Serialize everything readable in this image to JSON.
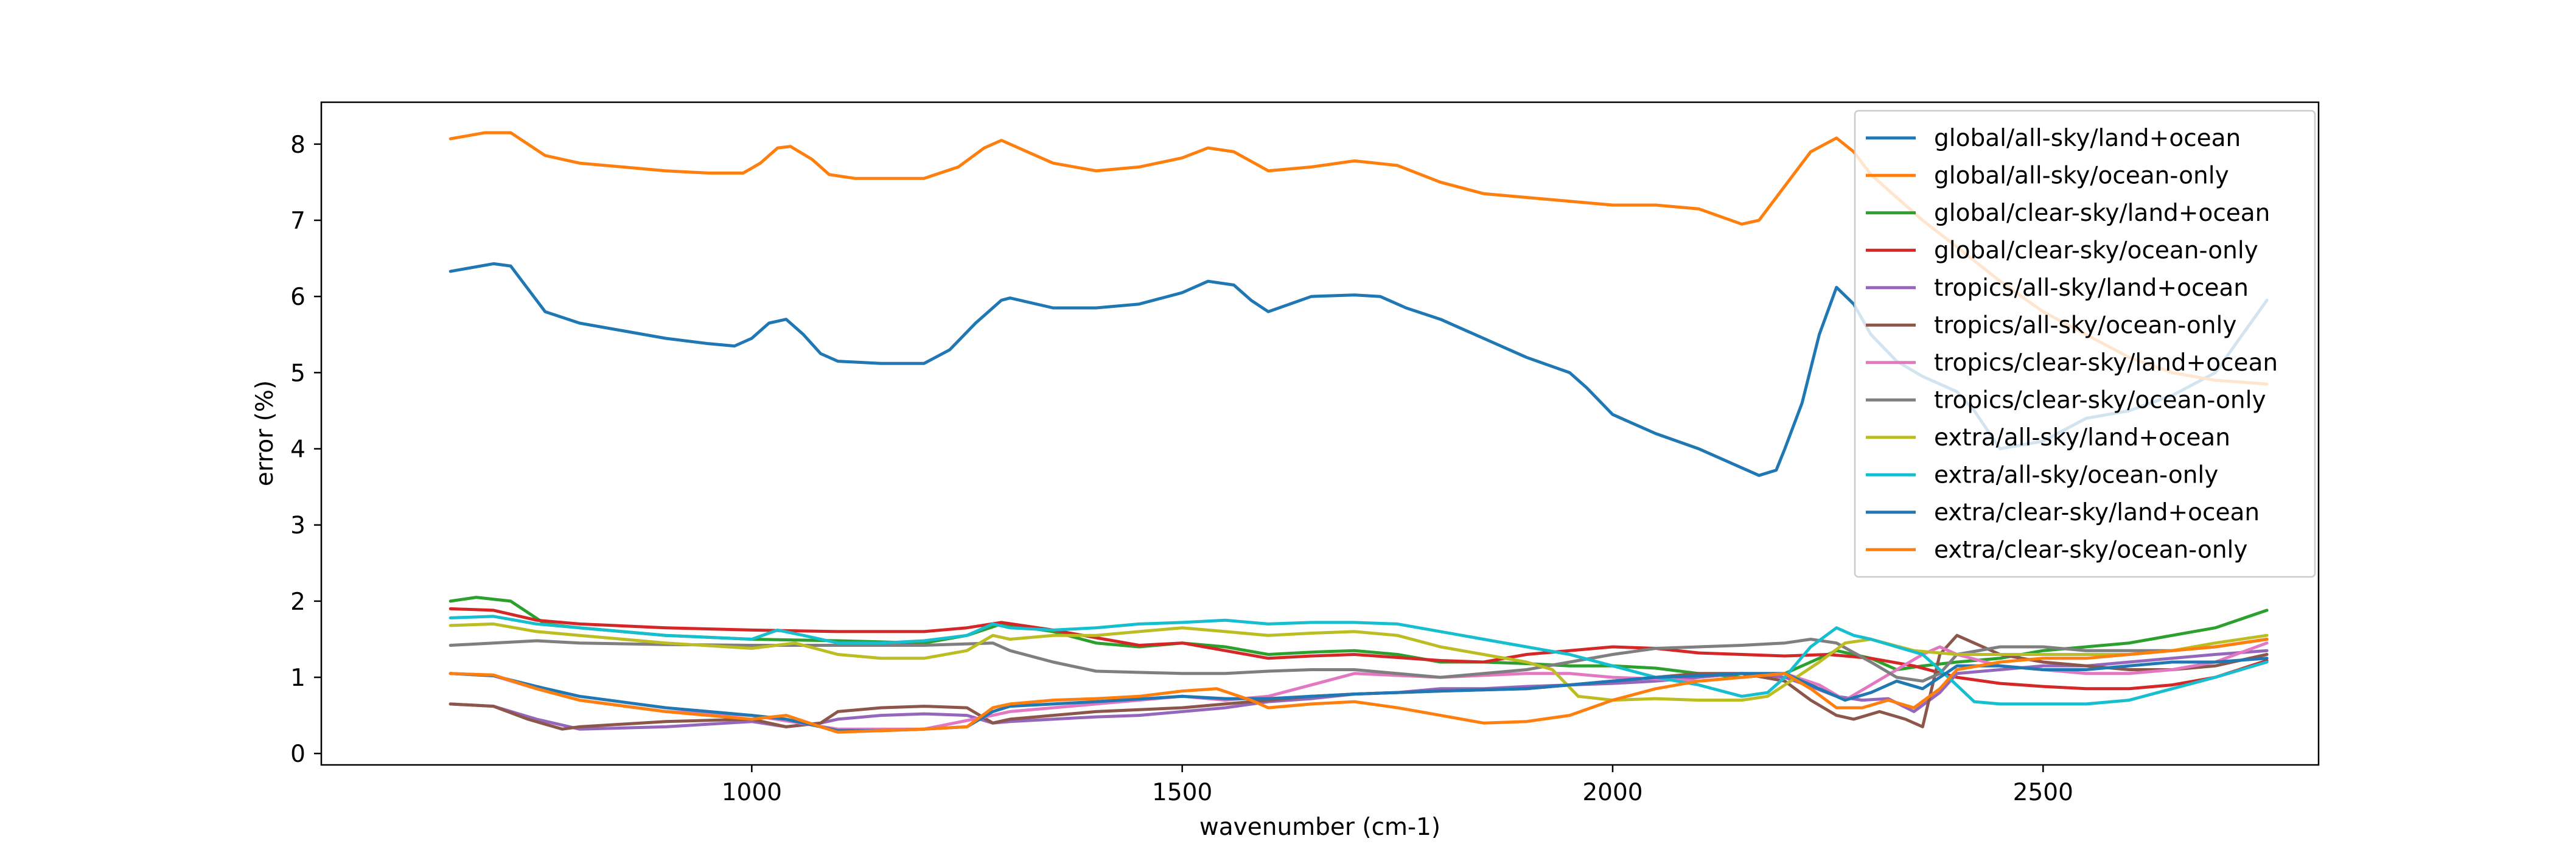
{
  "chart_data": {
    "type": "line",
    "title": "",
    "xlabel": "wavenumber (cm-1)",
    "ylabel": "error (%)",
    "xlim": [
      500,
      2820
    ],
    "ylim": [
      -0.15,
      8.55
    ],
    "xticks": [
      1000,
      1500,
      2000,
      2500
    ],
    "yticks": [
      0,
      1,
      2,
      3,
      4,
      5,
      6,
      7,
      8
    ],
    "grid": false,
    "legend_position": "top-right",
    "series": [
      {
        "name": "global/all-sky/land+ocean",
        "color": "#1f77b4",
        "x": [
          650,
          700,
          720,
          760,
          800,
          850,
          900,
          950,
          980,
          1000,
          1020,
          1040,
          1060,
          1080,
          1100,
          1150,
          1200,
          1230,
          1260,
          1290,
          1300,
          1350,
          1400,
          1450,
          1500,
          1530,
          1560,
          1580,
          1600,
          1650,
          1700,
          1730,
          1760,
          1800,
          1850,
          1900,
          1950,
          1970,
          2000,
          2050,
          2100,
          2150,
          2170,
          2190,
          2200,
          2220,
          2240,
          2260,
          2280,
          2300,
          2330,
          2360,
          2380,
          2400,
          2420,
          2450,
          2500,
          2550,
          2600,
          2650,
          2700,
          2760
        ],
        "y": [
          6.33,
          6.43,
          6.4,
          5.8,
          5.65,
          5.55,
          5.45,
          5.38,
          5.35,
          5.45,
          5.65,
          5.7,
          5.5,
          5.25,
          5.15,
          5.12,
          5.12,
          5.3,
          5.65,
          5.95,
          5.98,
          5.85,
          5.85,
          5.9,
          6.05,
          6.2,
          6.15,
          5.95,
          5.8,
          6.0,
          6.02,
          6.0,
          5.85,
          5.7,
          5.45,
          5.2,
          5.0,
          4.8,
          4.45,
          4.2,
          4.0,
          3.75,
          3.65,
          3.72,
          4.0,
          4.6,
          5.5,
          6.12,
          5.9,
          5.5,
          5.15,
          4.95,
          4.85,
          4.75,
          4.5,
          4.0,
          4.1,
          4.4,
          4.5,
          4.7,
          5.0,
          5.95
        ]
      },
      {
        "name": "global/all-sky/ocean-only",
        "color": "#ff7f0e",
        "x": [
          650,
          690,
          720,
          760,
          800,
          850,
          900,
          950,
          990,
          1010,
          1030,
          1045,
          1070,
          1090,
          1120,
          1200,
          1240,
          1270,
          1290,
          1320,
          1350,
          1400,
          1450,
          1500,
          1530,
          1560,
          1600,
          1650,
          1700,
          1750,
          1800,
          1850,
          1900,
          1950,
          2000,
          2050,
          2100,
          2150,
          2170,
          2200,
          2230,
          2260,
          2280,
          2300,
          2330,
          2360,
          2400,
          2450,
          2500,
          2550,
          2600,
          2650,
          2700,
          2760
        ],
        "y": [
          8.07,
          8.15,
          8.15,
          7.85,
          7.75,
          7.7,
          7.65,
          7.62,
          7.62,
          7.75,
          7.95,
          7.97,
          7.8,
          7.6,
          7.55,
          7.55,
          7.7,
          7.95,
          8.05,
          7.9,
          7.75,
          7.65,
          7.7,
          7.82,
          7.95,
          7.9,
          7.65,
          7.7,
          7.78,
          7.72,
          7.5,
          7.35,
          7.3,
          7.25,
          7.2,
          7.2,
          7.15,
          6.95,
          7.0,
          7.45,
          7.9,
          8.08,
          7.9,
          7.6,
          7.3,
          7.0,
          6.65,
          6.2,
          5.8,
          5.5,
          5.2,
          5.0,
          4.9,
          4.85
        ]
      },
      {
        "name": "global/clear-sky/land+ocean",
        "color": "#2ca02c",
        "x": [
          650,
          680,
          720,
          760,
          800,
          900,
          1000,
          1100,
          1200,
          1250,
          1290,
          1350,
          1400,
          1450,
          1500,
          1550,
          1600,
          1650,
          1700,
          1750,
          1800,
          1850,
          1900,
          1950,
          2000,
          2050,
          2100,
          2150,
          2200,
          2230,
          2260,
          2300,
          2330,
          2360,
          2400,
          2450,
          2500,
          2550,
          2600,
          2650,
          2700,
          2760
        ],
        "y": [
          2.0,
          2.05,
          2.0,
          1.7,
          1.65,
          1.55,
          1.5,
          1.48,
          1.45,
          1.55,
          1.7,
          1.6,
          1.45,
          1.4,
          1.45,
          1.4,
          1.3,
          1.33,
          1.35,
          1.3,
          1.2,
          1.2,
          1.18,
          1.15,
          1.15,
          1.12,
          1.05,
          1.0,
          1.05,
          1.2,
          1.35,
          1.25,
          1.1,
          1.15,
          1.2,
          1.25,
          1.35,
          1.4,
          1.45,
          1.55,
          1.65,
          1.88
        ]
      },
      {
        "name": "global/clear-sky/ocean-only",
        "color": "#d62728",
        "x": [
          650,
          700,
          750,
          800,
          900,
          1000,
          1100,
          1200,
          1250,
          1290,
          1350,
          1400,
          1450,
          1500,
          1550,
          1600,
          1650,
          1700,
          1800,
          1850,
          1900,
          1950,
          2000,
          2050,
          2100,
          2150,
          2200,
          2250,
          2300,
          2350,
          2400,
          2450,
          2500,
          2550,
          2600,
          2650,
          2700,
          2760
        ],
        "y": [
          1.9,
          1.88,
          1.75,
          1.7,
          1.65,
          1.62,
          1.6,
          1.6,
          1.65,
          1.72,
          1.62,
          1.52,
          1.42,
          1.45,
          1.35,
          1.25,
          1.28,
          1.3,
          1.22,
          1.2,
          1.3,
          1.35,
          1.4,
          1.38,
          1.32,
          1.3,
          1.28,
          1.3,
          1.25,
          1.15,
          1.0,
          0.92,
          0.88,
          0.85,
          0.85,
          0.9,
          1.0,
          1.22
        ]
      },
      {
        "name": "tropics/all-sky/land+ocean",
        "color": "#9467bd",
        "x": [
          650,
          700,
          750,
          800,
          900,
          1000,
          1040,
          1080,
          1100,
          1150,
          1200,
          1250,
          1280,
          1300,
          1350,
          1400,
          1450,
          1500,
          1550,
          1600,
          1650,
          1700,
          1750,
          1800,
          1850,
          1900,
          1950,
          2000,
          2050,
          2100,
          2150,
          2200,
          2230,
          2260,
          2290,
          2320,
          2350,
          2380,
          2400,
          2450,
          2500,
          2550,
          2600,
          2650,
          2700,
          2760
        ],
        "y": [
          0.65,
          0.62,
          0.45,
          0.32,
          0.35,
          0.42,
          0.35,
          0.4,
          0.45,
          0.5,
          0.52,
          0.5,
          0.4,
          0.42,
          0.45,
          0.48,
          0.5,
          0.55,
          0.6,
          0.68,
          0.72,
          0.78,
          0.8,
          0.85,
          0.85,
          0.88,
          0.9,
          0.92,
          0.95,
          1.0,
          1.05,
          1.0,
          0.88,
          0.75,
          0.7,
          0.72,
          0.55,
          0.8,
          1.05,
          1.1,
          1.15,
          1.15,
          1.2,
          1.25,
          1.3,
          1.35
        ]
      },
      {
        "name": "tropics/all-sky/ocean-only",
        "color": "#8c564b",
        "x": [
          650,
          700,
          740,
          780,
          800,
          900,
          1000,
          1040,
          1080,
          1100,
          1150,
          1200,
          1250,
          1280,
          1300,
          1350,
          1400,
          1500,
          1550,
          1600,
          1650,
          1700,
          1800,
          1900,
          1950,
          2000,
          2050,
          2100,
          2150,
          2200,
          2230,
          2260,
          2280,
          2310,
          2340,
          2360,
          2380,
          2400,
          2450,
          2500,
          2550,
          2600,
          2650,
          2700,
          2760
        ],
        "y": [
          0.65,
          0.62,
          0.45,
          0.32,
          0.35,
          0.42,
          0.45,
          0.35,
          0.4,
          0.55,
          0.6,
          0.62,
          0.6,
          0.4,
          0.45,
          0.5,
          0.55,
          0.6,
          0.65,
          0.7,
          0.75,
          0.78,
          0.82,
          0.85,
          0.9,
          0.95,
          1.0,
          1.05,
          1.05,
          0.95,
          0.7,
          0.5,
          0.45,
          0.55,
          0.45,
          0.35,
          1.3,
          1.55,
          1.3,
          1.2,
          1.15,
          1.1,
          1.1,
          1.15,
          1.3
        ]
      },
      {
        "name": "tropics/clear-sky/land+ocean",
        "color": "#e377c2",
        "x": [
          650,
          700,
          750,
          800,
          900,
          1000,
          1100,
          1200,
          1280,
          1300,
          1350,
          1400,
          1500,
          1550,
          1600,
          1650,
          1700,
          1800,
          1900,
          1950,
          2000,
          2050,
          2100,
          2150,
          2200,
          2240,
          2270,
          2300,
          2330,
          2360,
          2380,
          2400,
          2450,
          2500,
          2550,
          2600,
          2650,
          2700,
          2760
        ],
        "y": [
          1.05,
          1.02,
          0.85,
          0.7,
          0.55,
          0.5,
          0.32,
          0.32,
          0.5,
          0.55,
          0.6,
          0.65,
          0.75,
          0.7,
          0.75,
          0.9,
          1.05,
          1.0,
          1.05,
          1.05,
          1.0,
          0.98,
          0.95,
          1.0,
          1.05,
          0.9,
          0.7,
          0.9,
          1.1,
          1.3,
          1.4,
          1.3,
          1.15,
          1.1,
          1.05,
          1.05,
          1.1,
          1.2,
          1.45
        ]
      },
      {
        "name": "tropics/clear-sky/ocean-only",
        "color": "#7f7f7f",
        "x": [
          650,
          700,
          750,
          800,
          900,
          1000,
          1100,
          1200,
          1280,
          1300,
          1350,
          1400,
          1500,
          1550,
          1600,
          1650,
          1700,
          1800,
          1900,
          1950,
          2000,
          2050,
          2100,
          2150,
          2200,
          2230,
          2260,
          2300,
          2330,
          2360,
          2380,
          2400,
          2450,
          2500,
          2550,
          2600,
          2650,
          2700,
          2760
        ],
        "y": [
          1.42,
          1.45,
          1.48,
          1.45,
          1.43,
          1.42,
          1.42,
          1.42,
          1.45,
          1.35,
          1.2,
          1.08,
          1.05,
          1.05,
          1.08,
          1.1,
          1.1,
          1.0,
          1.1,
          1.2,
          1.3,
          1.38,
          1.4,
          1.42,
          1.45,
          1.5,
          1.45,
          1.2,
          1.0,
          0.95,
          1.05,
          1.3,
          1.4,
          1.4,
          1.35,
          1.35,
          1.35,
          1.4,
          1.5
        ]
      },
      {
        "name": "extra/all-sky/land+ocean",
        "color": "#bcbd22",
        "x": [
          650,
          700,
          750,
          800,
          900,
          1000,
          1050,
          1100,
          1150,
          1200,
          1250,
          1280,
          1300,
          1350,
          1400,
          1450,
          1500,
          1550,
          1600,
          1650,
          1700,
          1750,
          1800,
          1850,
          1900,
          1930,
          1960,
          2000,
          2050,
          2100,
          2150,
          2180,
          2200,
          2240,
          2270,
          2300,
          2350,
          2400,
          2450,
          2500,
          2550,
          2600,
          2650,
          2700,
          2760
        ],
        "y": [
          1.68,
          1.7,
          1.6,
          1.55,
          1.45,
          1.38,
          1.45,
          1.3,
          1.25,
          1.25,
          1.35,
          1.55,
          1.5,
          1.55,
          1.55,
          1.6,
          1.65,
          1.6,
          1.55,
          1.58,
          1.6,
          1.55,
          1.4,
          1.3,
          1.2,
          1.1,
          0.75,
          0.7,
          0.72,
          0.7,
          0.7,
          0.75,
          0.9,
          1.2,
          1.45,
          1.5,
          1.35,
          1.3,
          1.3,
          1.3,
          1.3,
          1.3,
          1.35,
          1.45,
          1.55
        ]
      },
      {
        "name": "extra/all-sky/ocean-only",
        "color": "#17becf",
        "x": [
          650,
          700,
          750,
          800,
          900,
          1000,
          1030,
          1060,
          1100,
          1150,
          1200,
          1250,
          1280,
          1300,
          1350,
          1400,
          1450,
          1500,
          1550,
          1600,
          1650,
          1700,
          1750,
          1800,
          1850,
          1900,
          1950,
          2000,
          2050,
          2100,
          2150,
          2180,
          2200,
          2230,
          2260,
          2280,
          2300,
          2330,
          2360,
          2390,
          2420,
          2450,
          2500,
          2550,
          2600,
          2650,
          2700,
          2760
        ],
        "y": [
          1.78,
          1.8,
          1.7,
          1.65,
          1.55,
          1.5,
          1.62,
          1.55,
          1.45,
          1.45,
          1.48,
          1.55,
          1.7,
          1.65,
          1.62,
          1.65,
          1.7,
          1.72,
          1.75,
          1.7,
          1.72,
          1.72,
          1.7,
          1.6,
          1.5,
          1.4,
          1.3,
          1.15,
          1.0,
          0.9,
          0.75,
          0.8,
          1.0,
          1.4,
          1.65,
          1.55,
          1.5,
          1.4,
          1.3,
          1.0,
          0.68,
          0.65,
          0.65,
          0.65,
          0.7,
          0.85,
          1.0,
          1.2
        ]
      },
      {
        "name": "extra/clear-sky/land+ocean",
        "color": "#1f77b4",
        "x": [
          650,
          700,
          750,
          800,
          900,
          1000,
          1040,
          1080,
          1100,
          1150,
          1200,
          1250,
          1280,
          1300,
          1350,
          1400,
          1500,
          1550,
          1600,
          1650,
          1700,
          1800,
          1900,
          1950,
          2000,
          2050,
          2100,
          2150,
          2200,
          2240,
          2270,
          2300,
          2330,
          2360,
          2380,
          2400,
          2450,
          2500,
          2550,
          2600,
          2650,
          2700,
          2760
        ],
        "y": [
          1.05,
          1.02,
          0.88,
          0.75,
          0.6,
          0.5,
          0.45,
          0.35,
          0.3,
          0.3,
          0.32,
          0.35,
          0.55,
          0.62,
          0.65,
          0.68,
          0.75,
          0.72,
          0.72,
          0.75,
          0.78,
          0.82,
          0.85,
          0.9,
          0.95,
          1.0,
          1.02,
          1.05,
          1.05,
          0.85,
          0.7,
          0.8,
          0.95,
          0.85,
          1.0,
          1.15,
          1.15,
          1.1,
          1.1,
          1.15,
          1.2,
          1.2,
          1.25
        ]
      },
      {
        "name": "extra/clear-sky/ocean-only",
        "color": "#ff7f0e",
        "x": [
          650,
          700,
          750,
          800,
          900,
          1000,
          1040,
          1080,
          1100,
          1150,
          1200,
          1250,
          1280,
          1300,
          1350,
          1400,
          1450,
          1500,
          1540,
          1580,
          1600,
          1650,
          1700,
          1750,
          1800,
          1850,
          1900,
          1950,
          2000,
          2050,
          2100,
          2150,
          2200,
          2230,
          2260,
          2290,
          2320,
          2350,
          2380,
          2400,
          2450,
          2500,
          2550,
          2600,
          2650,
          2700,
          2760
        ],
        "y": [
          1.05,
          1.03,
          0.85,
          0.7,
          0.55,
          0.45,
          0.5,
          0.35,
          0.28,
          0.3,
          0.32,
          0.35,
          0.6,
          0.65,
          0.7,
          0.72,
          0.75,
          0.82,
          0.85,
          0.7,
          0.6,
          0.65,
          0.68,
          0.6,
          0.5,
          0.4,
          0.42,
          0.5,
          0.7,
          0.85,
          0.95,
          1.0,
          1.05,
          0.85,
          0.6,
          0.6,
          0.7,
          0.6,
          0.85,
          1.1,
          1.2,
          1.25,
          1.25,
          1.3,
          1.35,
          1.4,
          1.5
        ]
      }
    ]
  }
}
